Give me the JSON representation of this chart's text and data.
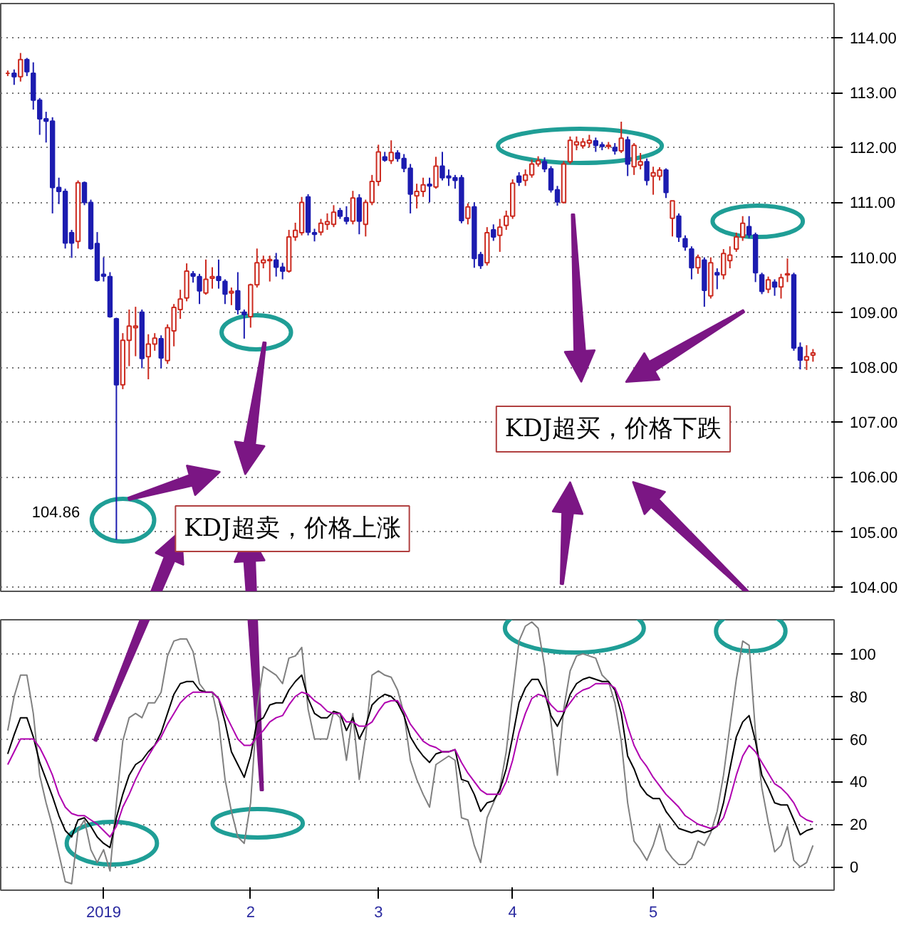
{
  "chart_data": [
    {
      "type": "candlestick",
      "categories": [
        null,
        null,
        null,
        null,
        null,
        null,
        null,
        null,
        null,
        null,
        null,
        null,
        null,
        null,
        null,
        "2019",
        null,
        null,
        null,
        null,
        null,
        null,
        null,
        null,
        null,
        null,
        null,
        null,
        null,
        null,
        null,
        null,
        null,
        null,
        null,
        null,
        null,
        null,
        "2",
        null,
        null,
        null,
        null,
        null,
        null,
        null,
        null,
        null,
        null,
        null,
        null,
        null,
        null,
        null,
        null,
        null,
        null,
        null,
        "3",
        null,
        null,
        null,
        null,
        null,
        null,
        null,
        null,
        null,
        null,
        null,
        null,
        null,
        null,
        null,
        null,
        null,
        null,
        null,
        null,
        "4",
        null,
        null,
        null,
        null,
        null,
        null,
        null,
        null,
        null,
        null,
        null,
        null,
        null,
        null,
        null,
        null,
        null,
        null,
        null,
        null,
        null,
        "5",
        null,
        null,
        null,
        null,
        null,
        null,
        null,
        null,
        null,
        null,
        null,
        null,
        null,
        null,
        null,
        null,
        null,
        null,
        null,
        null,
        null,
        null,
        null,
        null,
        null
      ],
      "ohlc": [
        [
          113.35,
          113.4,
          113.3,
          113.35
        ],
        [
          113.35,
          113.42,
          113.14,
          113.29
        ],
        [
          113.29,
          113.72,
          113.2,
          113.6
        ],
        [
          113.6,
          113.63,
          113.3,
          113.38
        ],
        [
          113.35,
          113.55,
          112.69,
          112.86
        ],
        [
          112.86,
          112.9,
          112.23,
          112.52
        ],
        [
          112.52,
          112.65,
          112.09,
          112.48
        ],
        [
          112.48,
          112.55,
          110.8,
          111.27
        ],
        [
          111.27,
          111.45,
          110.97,
          111.2
        ],
        [
          111.2,
          111.25,
          110.16,
          110.26
        ],
        [
          110.45,
          110.5,
          109.99,
          110.26
        ],
        [
          110.29,
          111.4,
          110.16,
          111.36
        ],
        [
          111.36,
          111.38,
          110.95,
          111.0
        ],
        [
          111.0,
          111.05,
          110.14,
          110.16
        ],
        [
          110.25,
          110.46,
          109.56,
          109.58
        ],
        [
          109.69,
          110.0,
          109.56,
          109.66
        ],
        [
          109.65,
          109.73,
          108.9,
          108.92
        ],
        [
          108.88,
          108.9,
          104.86,
          107.68
        ],
        [
          107.68,
          108.62,
          107.6,
          108.49
        ],
        [
          108.49,
          109.05,
          108.02,
          108.75
        ],
        [
          108.72,
          109.1,
          108.2,
          108.75
        ],
        [
          109.0,
          109.05,
          107.98,
          108.16
        ],
        [
          108.19,
          108.6,
          107.78,
          108.42
        ],
        [
          108.42,
          108.62,
          108.3,
          108.53
        ],
        [
          108.52,
          108.58,
          107.98,
          108.17
        ],
        [
          108.12,
          108.78,
          108.06,
          108.72
        ],
        [
          108.66,
          109.15,
          108.38,
          109.09
        ],
        [
          109.05,
          109.41,
          108.88,
          109.24
        ],
        [
          109.26,
          109.89,
          109.2,
          109.75
        ],
        [
          109.7,
          109.75,
          109.54,
          109.66
        ],
        [
          109.65,
          109.7,
          109.15,
          109.39
        ],
        [
          109.35,
          109.96,
          109.32,
          109.6
        ],
        [
          109.62,
          109.82,
          109.43,
          109.65
        ],
        [
          109.65,
          109.96,
          109.43,
          109.58
        ],
        [
          109.56,
          109.6,
          109.15,
          109.33
        ],
        [
          109.35,
          109.45,
          109.13,
          109.38
        ],
        [
          109.39,
          109.73,
          108.96,
          109.05
        ],
        [
          109.0,
          109.05,
          108.52,
          108.96
        ],
        [
          108.92,
          109.52,
          108.72,
          109.5
        ],
        [
          109.5,
          110.16,
          109.45,
          109.9
        ],
        [
          109.9,
          110.03,
          109.8,
          109.95
        ],
        [
          109.94,
          110.03,
          109.56,
          109.96
        ],
        [
          109.95,
          110.08,
          109.65,
          109.82
        ],
        [
          109.82,
          109.9,
          109.6,
          109.75
        ],
        [
          109.75,
          110.5,
          109.72,
          110.37
        ],
        [
          110.37,
          110.63,
          110.3,
          110.49
        ],
        [
          110.45,
          111.1,
          110.4,
          111.0
        ],
        [
          111.1,
          111.15,
          110.4,
          110.46
        ],
        [
          110.45,
          110.52,
          110.29,
          110.42
        ],
        [
          110.46,
          110.7,
          110.4,
          110.62
        ],
        [
          110.6,
          110.8,
          110.5,
          110.65
        ],
        [
          110.6,
          110.95,
          110.55,
          110.82
        ],
        [
          110.85,
          110.9,
          110.7,
          110.75
        ],
        [
          110.72,
          110.93,
          110.6,
          110.66
        ],
        [
          110.66,
          111.21,
          110.6,
          111.08
        ],
        [
          111.08,
          111.15,
          110.42,
          110.66
        ],
        [
          110.6,
          111.05,
          110.38,
          111.0
        ],
        [
          111.0,
          111.5,
          110.95,
          111.38
        ],
        [
          111.38,
          112.05,
          111.3,
          111.92
        ],
        [
          111.83,
          111.92,
          111.74,
          111.77
        ],
        [
          111.76,
          112.13,
          111.7,
          111.91
        ],
        [
          111.9,
          111.95,
          111.74,
          111.8
        ],
        [
          111.8,
          111.88,
          111.55,
          111.62
        ],
        [
          111.62,
          111.7,
          110.8,
          111.15
        ],
        [
          111.12,
          111.34,
          110.89,
          111.2
        ],
        [
          111.2,
          111.45,
          111.1,
          111.32
        ],
        [
          111.33,
          111.45,
          111.0,
          111.3
        ],
        [
          111.28,
          111.83,
          111.25,
          111.66
        ],
        [
          111.66,
          111.92,
          111.4,
          111.45
        ],
        [
          111.48,
          111.6,
          111.3,
          111.45
        ],
        [
          111.45,
          111.5,
          111.25,
          111.4
        ],
        [
          111.45,
          111.5,
          110.62,
          110.67
        ],
        [
          110.71,
          110.98,
          110.6,
          110.92
        ],
        [
          110.92,
          111.0,
          109.81,
          109.98
        ],
        [
          110.05,
          110.1,
          109.79,
          109.85
        ],
        [
          109.9,
          110.55,
          109.85,
          110.45
        ],
        [
          110.5,
          110.6,
          110.3,
          110.37
        ],
        [
          110.4,
          110.7,
          110.1,
          110.55
        ],
        [
          110.58,
          110.85,
          110.5,
          110.75
        ],
        [
          110.75,
          111.42,
          110.7,
          111.35
        ],
        [
          111.48,
          111.55,
          111.3,
          111.37
        ],
        [
          111.4,
          111.6,
          111.3,
          111.5
        ],
        [
          111.5,
          111.78,
          111.45,
          111.7
        ],
        [
          111.7,
          111.84,
          111.65,
          111.76
        ],
        [
          111.74,
          111.82,
          111.55,
          111.61
        ],
        [
          111.61,
          111.66,
          111.18,
          111.23
        ],
        [
          111.23,
          111.3,
          110.94,
          111.01
        ],
        [
          111.0,
          111.75,
          110.98,
          111.7
        ],
        [
          111.74,
          112.2,
          111.7,
          112.13
        ],
        [
          112.05,
          112.2,
          111.95,
          112.1
        ],
        [
          112.03,
          112.17,
          111.98,
          112.1
        ],
        [
          112.08,
          112.23,
          112.0,
          112.13
        ],
        [
          112.12,
          112.18,
          111.92,
          112.04
        ],
        [
          112.05,
          112.1,
          111.95,
          112.02
        ],
        [
          112.02,
          112.1,
          111.97,
          112.04
        ],
        [
          112.0,
          112.08,
          111.87,
          111.94
        ],
        [
          111.94,
          112.47,
          111.9,
          112.17
        ],
        [
          112.14,
          112.2,
          111.48,
          111.7
        ],
        [
          111.65,
          112.08,
          111.5,
          112.04
        ],
        [
          111.68,
          111.9,
          111.6,
          111.74
        ],
        [
          111.74,
          111.8,
          111.31,
          111.4
        ],
        [
          111.48,
          111.65,
          111.14,
          111.54
        ],
        [
          111.48,
          111.64,
          111.4,
          111.59
        ],
        [
          111.59,
          111.62,
          111.08,
          111.18
        ],
        [
          110.71,
          111.03,
          110.38,
          111.03
        ],
        [
          110.75,
          110.8,
          110.28,
          110.37
        ],
        [
          110.34,
          110.4,
          110.12,
          110.19
        ],
        [
          110.15,
          110.2,
          109.6,
          109.81
        ],
        [
          109.81,
          110.05,
          109.7,
          110.0
        ],
        [
          109.95,
          110.0,
          109.1,
          109.4
        ],
        [
          109.3,
          110.0,
          109.25,
          109.9
        ],
        [
          109.72,
          109.8,
          109.42,
          109.68
        ],
        [
          109.68,
          110.15,
          109.6,
          110.07
        ],
        [
          109.94,
          110.2,
          109.8,
          110.04
        ],
        [
          110.15,
          110.45,
          110.1,
          110.37
        ],
        [
          110.37,
          110.75,
          110.3,
          110.62
        ],
        [
          110.56,
          110.75,
          110.35,
          110.41
        ],
        [
          110.41,
          110.45,
          109.55,
          109.72
        ],
        [
          109.68,
          109.72,
          109.33,
          109.38
        ],
        [
          109.42,
          109.65,
          109.35,
          109.59
        ],
        [
          109.55,
          109.6,
          109.3,
          109.46
        ],
        [
          109.46,
          109.7,
          109.25,
          109.63
        ],
        [
          109.68,
          109.98,
          109.55,
          109.7
        ],
        [
          109.68,
          109.72,
          108.3,
          108.35
        ],
        [
          108.36,
          108.45,
          107.96,
          108.13
        ],
        [
          108.13,
          108.4,
          107.95,
          108.19
        ],
        [
          108.22,
          108.33,
          108.1,
          108.26
        ]
      ],
      "ylim": [
        103.92,
        114.62
      ],
      "yticks": [
        {
          "value": 104,
          "label": "104.00"
        },
        {
          "value": 105,
          "label": "105.00"
        },
        {
          "value": 106,
          "label": "106.00"
        },
        {
          "value": 107,
          "label": "107.00"
        },
        {
          "value": 108,
          "label": "108.00"
        },
        {
          "value": 109,
          "label": "109.00"
        },
        {
          "value": 110,
          "label": "110.00"
        },
        {
          "value": 111,
          "label": "111.00"
        },
        {
          "value": 112,
          "label": "112.00"
        },
        {
          "value": 113,
          "label": "113.00"
        },
        {
          "value": 114,
          "label": "114.00"
        }
      ],
      "grid": "y",
      "tick_labels": "y",
      "annotations": [
        "KDJ超卖，价格上涨",
        "KDJ超买，价格下跌",
        "104.86"
      ]
    },
    {
      "type": "line",
      "categories": [
        null,
        null,
        null,
        null,
        null,
        null,
        null,
        null,
        null,
        null,
        null,
        null,
        null,
        null,
        null,
        "2019",
        null,
        null,
        null,
        null,
        null,
        null,
        null,
        null,
        null,
        null,
        null,
        null,
        null,
        null,
        null,
        null,
        null,
        null,
        null,
        null,
        null,
        null,
        "2",
        null,
        null,
        null,
        null,
        null,
        null,
        null,
        null,
        null,
        null,
        null,
        null,
        null,
        null,
        null,
        null,
        null,
        null,
        null,
        "3",
        null,
        null,
        null,
        null,
        null,
        null,
        null,
        null,
        null,
        null,
        null,
        null,
        null,
        null,
        null,
        null,
        null,
        null,
        null,
        null,
        "4",
        null,
        null,
        null,
        null,
        null,
        null,
        null,
        null,
        null,
        null,
        null,
        null,
        null,
        null,
        null,
        null,
        null,
        null,
        null,
        null,
        null,
        "5",
        null,
        null,
        null,
        null,
        null,
        null,
        null,
        null,
        null,
        null,
        null,
        null,
        null,
        null,
        null,
        null,
        null,
        null,
        null,
        null,
        null,
        null,
        null,
        null,
        null
      ],
      "series": [
        {
          "color": "#808080",
          "values": [
            64,
            80,
            90,
            90,
            72,
            43,
            30,
            19,
            6,
            -7,
            -8,
            17,
            22,
            8,
            2,
            8,
            -2,
            30,
            59,
            70,
            72,
            70,
            77,
            77,
            82,
            99,
            106,
            107,
            107,
            101,
            86,
            82,
            82,
            68,
            41,
            26,
            14,
            11,
            30,
            74,
            94,
            92,
            90,
            86,
            98,
            99,
            103,
            74,
            60,
            60,
            60,
            73,
            70,
            50,
            72,
            41,
            61,
            90,
            92,
            90,
            89,
            83,
            72,
            50,
            41,
            34,
            28,
            48,
            50,
            52,
            50,
            23,
            22,
            10,
            2,
            23,
            30,
            37,
            54,
            81,
            106,
            113,
            115,
            112,
            94,
            68,
            43,
            74,
            92,
            99,
            100,
            99,
            98,
            90,
            87,
            77,
            59,
            30,
            12,
            8,
            3,
            10,
            20,
            8,
            4,
            1,
            1,
            4,
            12,
            10,
            16,
            26,
            43,
            66,
            88,
            106,
            104,
            63,
            37,
            21,
            7,
            10,
            19,
            3,
            0,
            2,
            10
          ]
        },
        {
          "color": "#000000",
          "values": [
            53,
            62,
            70,
            70,
            61,
            49,
            41,
            33,
            24,
            17,
            14,
            22,
            23,
            19,
            14,
            11,
            9,
            23,
            34,
            43,
            48,
            50,
            54,
            57,
            63,
            72,
            81,
            86,
            87,
            87,
            83,
            82,
            82,
            79,
            68,
            54,
            48,
            42,
            52,
            68,
            70,
            76,
            77,
            77,
            83,
            87,
            90,
            79,
            72,
            70,
            70,
            73,
            72,
            64,
            70,
            60,
            66,
            76,
            79,
            81,
            80,
            77,
            71,
            61,
            56,
            52,
            49,
            53,
            54,
            54,
            55,
            41,
            40,
            34,
            26,
            30,
            31,
            36,
            46,
            61,
            77,
            84,
            88,
            88,
            82,
            71,
            66,
            72,
            81,
            86,
            88,
            89,
            88,
            87,
            87,
            83,
            72,
            52,
            46,
            38,
            34,
            32,
            32,
            26,
            22,
            18,
            17,
            16,
            17,
            16,
            17,
            19,
            30,
            46,
            61,
            68,
            71,
            59,
            43,
            37,
            30,
            29,
            29,
            22,
            15,
            17,
            18
          ]
        },
        {
          "color": "#b000b0",
          "values": [
            48,
            54,
            60,
            60,
            60,
            56,
            50,
            43,
            34,
            28,
            25,
            24,
            24,
            22,
            20,
            17,
            14,
            19,
            28,
            34,
            41,
            47,
            52,
            57,
            61,
            67,
            72,
            77,
            80,
            82,
            82,
            82,
            82,
            79,
            72,
            66,
            60,
            57,
            57,
            61,
            64,
            68,
            70,
            71,
            76,
            80,
            82,
            81,
            78,
            76,
            73,
            72,
            72,
            68,
            68,
            66,
            66,
            68,
            73,
            77,
            78,
            78,
            73,
            67,
            63,
            59,
            57,
            56,
            54,
            54,
            55,
            49,
            44,
            40,
            36,
            34,
            34,
            34,
            40,
            50,
            63,
            72,
            79,
            81,
            80,
            76,
            73,
            73,
            77,
            81,
            83,
            84,
            86,
            86,
            86,
            84,
            77,
            66,
            57,
            51,
            47,
            42,
            38,
            34,
            31,
            28,
            24,
            22,
            20,
            19,
            18,
            19,
            23,
            32,
            43,
            52,
            57,
            54,
            49,
            44,
            39,
            37,
            34,
            30,
            24,
            22,
            21
          ]
        }
      ],
      "ylim": [
        -11,
        116
      ],
      "yticks": [
        0,
        20,
        40,
        60,
        80,
        100
      ],
      "grid": "y"
    }
  ]
}
